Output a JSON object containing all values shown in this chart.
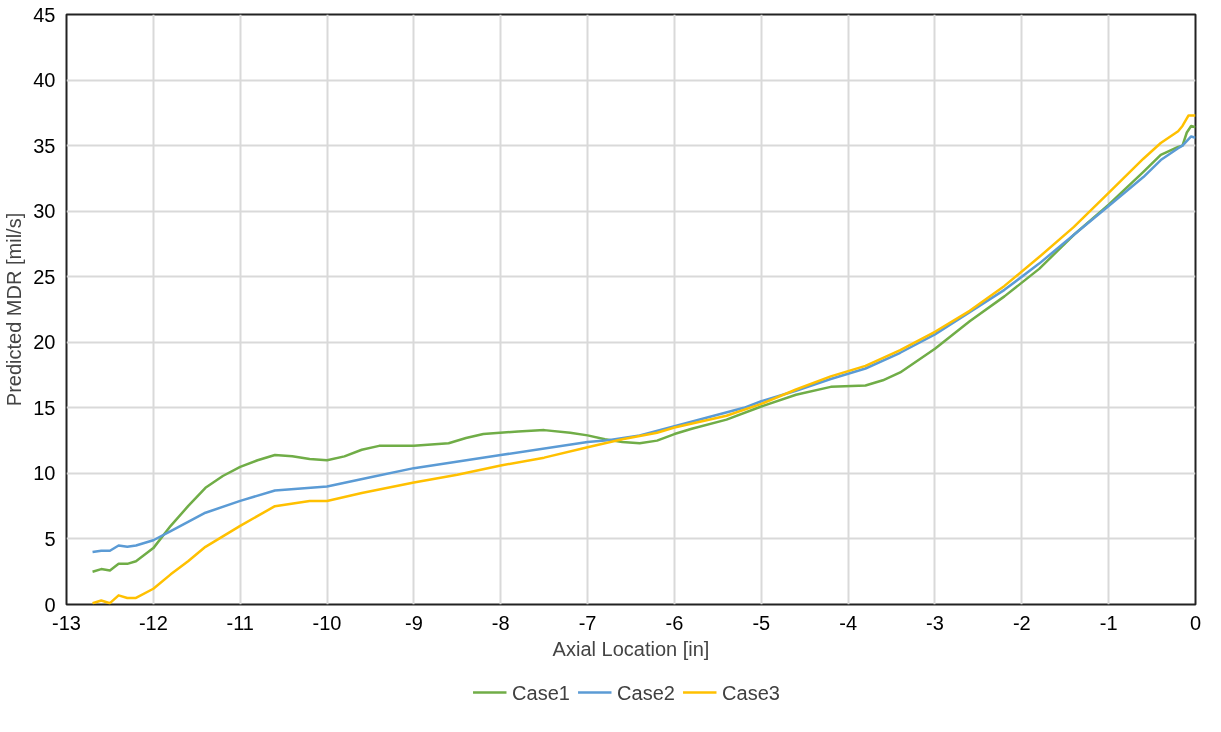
{
  "chart_data": {
    "type": "line",
    "xlabel": "Axial Location [in]",
    "ylabel": "Predicted MDR [mil/s]",
    "xlim": [
      -13,
      0
    ],
    "xticks": [
      -13,
      -12,
      -11,
      -10,
      -9,
      -8,
      -7,
      -6,
      -5,
      -4,
      -3,
      -2,
      -1,
      0
    ],
    "ylim": [
      0,
      45
    ],
    "yticks": [
      0,
      5,
      10,
      15,
      20,
      25,
      30,
      35,
      40,
      45
    ],
    "grid": true,
    "legend": "bottom",
    "marker": "none",
    "line_style": "solid",
    "series": [
      {
        "name": "Case1",
        "color": "#70ad47",
        "x": [
          -12.7,
          -12.6,
          -12.5,
          -12.4,
          -12.3,
          -12.2,
          -12.0,
          -11.8,
          -11.6,
          -11.4,
          -11.2,
          -11.0,
          -10.8,
          -10.6,
          -10.4,
          -10.2,
          -10.0,
          -9.8,
          -9.6,
          -9.4,
          -9.0,
          -8.6,
          -8.4,
          -8.2,
          -7.8,
          -7.5,
          -7.2,
          -7.0,
          -6.8,
          -6.6,
          -6.4,
          -6.2,
          -6.0,
          -5.8,
          -5.4,
          -5.0,
          -4.6,
          -4.2,
          -3.8,
          -3.6,
          -3.4,
          -3.0,
          -2.6,
          -2.2,
          -1.8,
          -1.4,
          -1.0,
          -0.6,
          -0.4,
          -0.2,
          -0.15,
          -0.1,
          -0.05,
          0
        ],
        "values": [
          2.5,
          2.7,
          2.6,
          3.1,
          3.1,
          3.3,
          4.3,
          6.0,
          7.5,
          8.9,
          9.8,
          10.5,
          11.0,
          11.4,
          11.3,
          11.1,
          11.0,
          11.3,
          11.8,
          12.1,
          12.1,
          12.3,
          12.7,
          13.0,
          13.2,
          13.3,
          13.1,
          12.9,
          12.6,
          12.4,
          12.3,
          12.5,
          13.0,
          13.4,
          14.1,
          15.1,
          16.0,
          16.6,
          16.7,
          17.1,
          17.7,
          19.5,
          21.6,
          23.5,
          25.6,
          28.2,
          30.5,
          33.0,
          34.3,
          34.9,
          35.0,
          36.0,
          36.5,
          36.4
        ]
      },
      {
        "name": "Case2",
        "color": "#5b9bd5",
        "x": [
          -12.7,
          -12.6,
          -12.5,
          -12.4,
          -12.3,
          -12.2,
          -12.0,
          -11.8,
          -11.6,
          -11.4,
          -11.0,
          -10.6,
          -10.0,
          -9.5,
          -9.0,
          -8.0,
          -7.0,
          -6.8,
          -6.4,
          -6.0,
          -5.6,
          -5.2,
          -5.0,
          -4.6,
          -4.2,
          -3.8,
          -3.4,
          -3.0,
          -2.6,
          -2.2,
          -1.8,
          -1.4,
          -1.0,
          -0.6,
          -0.4,
          -0.2,
          -0.15,
          -0.05,
          0
        ],
        "values": [
          4.0,
          4.1,
          4.1,
          4.5,
          4.4,
          4.5,
          4.9,
          5.6,
          6.3,
          7.0,
          7.9,
          8.7,
          9.0,
          9.7,
          10.4,
          11.4,
          12.4,
          12.5,
          12.9,
          13.6,
          14.3,
          15.0,
          15.5,
          16.3,
          17.2,
          18.0,
          19.2,
          20.6,
          22.3,
          24.0,
          26.0,
          28.2,
          30.4,
          32.6,
          33.9,
          34.8,
          35.0,
          35.7,
          35.6
        ]
      },
      {
        "name": "Case3",
        "color": "#ffc000",
        "x": [
          -12.7,
          -12.6,
          -12.5,
          -12.4,
          -12.3,
          -12.2,
          -12.0,
          -11.8,
          -11.6,
          -11.4,
          -11.2,
          -11.0,
          -10.6,
          -10.2,
          -10.0,
          -9.6,
          -9.0,
          -8.5,
          -8.0,
          -7.5,
          -7.0,
          -6.6,
          -6.2,
          -6.0,
          -5.4,
          -5.0,
          -4.6,
          -4.2,
          -3.8,
          -3.4,
          -3.0,
          -2.6,
          -2.2,
          -1.8,
          -1.4,
          -1.0,
          -0.6,
          -0.4,
          -0.2,
          -0.15,
          -0.08,
          0
        ],
        "values": [
          0.1,
          0.3,
          0.1,
          0.7,
          0.5,
          0.5,
          1.2,
          2.3,
          3.3,
          4.4,
          5.2,
          6.0,
          7.5,
          7.9,
          7.9,
          8.5,
          9.3,
          9.9,
          10.6,
          11.2,
          12.0,
          12.6,
          13.1,
          13.5,
          14.4,
          15.3,
          16.4,
          17.4,
          18.2,
          19.4,
          20.8,
          22.4,
          24.3,
          26.5,
          28.8,
          31.4,
          34.0,
          35.2,
          36.1,
          36.5,
          37.3,
          37.3
        ]
      }
    ]
  }
}
